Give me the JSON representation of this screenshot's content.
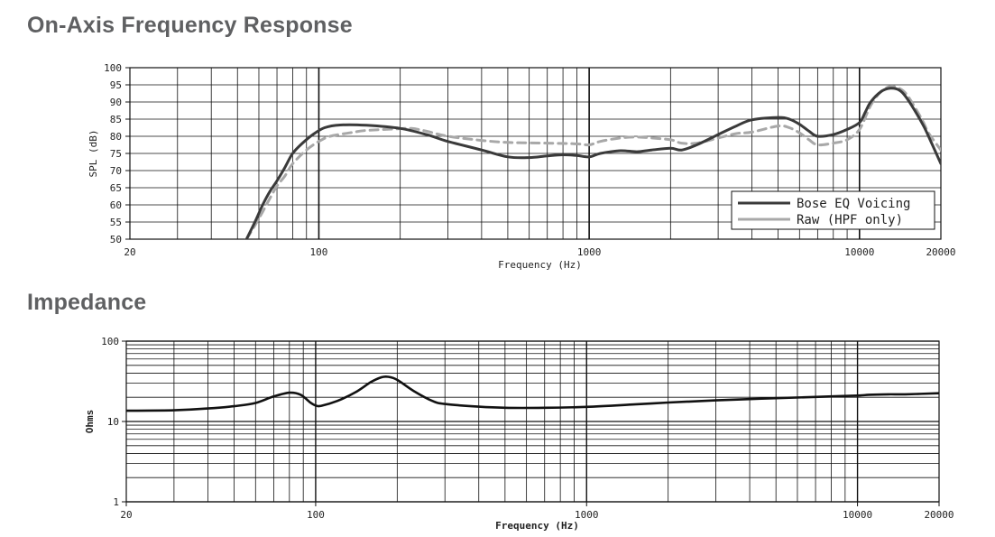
{
  "sections": {
    "frequency_response_title": "On-Axis Frequency Response",
    "impedance_title": "Impedance"
  },
  "colors": {
    "series_primary": "#3a3a3a",
    "series_secondary": "#a8a8a8",
    "impedance_line": "#111111",
    "grid": "#111111",
    "title": "#5f6062"
  },
  "chart_data": [
    {
      "type": "line",
      "title": "On-Axis Frequency Response",
      "xlabel": "Frequency (Hz)",
      "ylabel": "SPL (dB)",
      "xscale": "log",
      "xlim": [
        20,
        20000
      ],
      "ylim": [
        50,
        100
      ],
      "x_ticks": [
        20,
        100,
        1000,
        10000,
        20000
      ],
      "x_tick_labels": [
        "20",
        "100",
        "1000",
        "10000",
        "20000"
      ],
      "y_ticks": [
        50,
        55,
        60,
        65,
        70,
        75,
        80,
        85,
        90,
        95,
        100
      ],
      "grid": true,
      "legend_position": "bottom-right",
      "series": [
        {
          "name": "Bose EQ Voicing",
          "style": "solid",
          "points": [
            [
              54,
              50
            ],
            [
              58,
              55
            ],
            [
              62,
              60
            ],
            [
              66,
              64
            ],
            [
              70,
              67
            ],
            [
              75,
              71
            ],
            [
              80,
              75
            ],
            [
              87,
              78
            ],
            [
              95,
              80.5
            ],
            [
              105,
              82.5
            ],
            [
              120,
              83.3
            ],
            [
              150,
              83.2
            ],
            [
              200,
              82.3
            ],
            [
              250,
              80.5
            ],
            [
              300,
              78.5
            ],
            [
              400,
              76
            ],
            [
              500,
              74
            ],
            [
              600,
              73.8
            ],
            [
              700,
              74.3
            ],
            [
              800,
              74.6
            ],
            [
              900,
              74.4
            ],
            [
              1000,
              74
            ],
            [
              1100,
              75
            ],
            [
              1300,
              75.8
            ],
            [
              1500,
              75.5
            ],
            [
              1700,
              76
            ],
            [
              2000,
              76.5
            ],
            [
              2200,
              76
            ],
            [
              2500,
              77.5
            ],
            [
              3000,
              80.5
            ],
            [
              3500,
              83
            ],
            [
              4000,
              84.8
            ],
            [
              5000,
              85.5
            ],
            [
              5500,
              85
            ],
            [
              6000,
              83.5
            ],
            [
              6500,
              81.5
            ],
            [
              7000,
              80
            ],
            [
              8000,
              80.5
            ],
            [
              9000,
              82
            ],
            [
              10000,
              84
            ],
            [
              10500,
              87
            ],
            [
              11000,
              90
            ],
            [
              12000,
              93
            ],
            [
              13000,
              94
            ],
            [
              14000,
              93.5
            ],
            [
              15000,
              91
            ],
            [
              17000,
              84
            ],
            [
              18000,
              80
            ],
            [
              20000,
              72
            ]
          ]
        },
        {
          "name": "Raw (HPF only)",
          "style": "dashed",
          "points": [
            [
              54,
              50
            ],
            [
              58,
              54
            ],
            [
              62,
              58
            ],
            [
              66,
              62
            ],
            [
              70,
              65.5
            ],
            [
              75,
              68.5
            ],
            [
              80,
              72
            ],
            [
              90,
              76
            ],
            [
              100,
              78.5
            ],
            [
              110,
              80
            ],
            [
              130,
              81
            ],
            [
              150,
              81.7
            ],
            [
              200,
              82.2
            ],
            [
              220,
              82.3
            ],
            [
              250,
              81.5
            ],
            [
              300,
              80
            ],
            [
              400,
              78.8
            ],
            [
              500,
              78.2
            ],
            [
              700,
              78
            ],
            [
              900,
              77.8
            ],
            [
              1000,
              77.5
            ],
            [
              1100,
              78.5
            ],
            [
              1300,
              79.5
            ],
            [
              1500,
              79.8
            ],
            [
              1700,
              79.5
            ],
            [
              2000,
              79
            ],
            [
              2200,
              78
            ],
            [
              2500,
              78
            ],
            [
              3000,
              79.5
            ],
            [
              3500,
              80.8
            ],
            [
              4000,
              81.2
            ],
            [
              5000,
              83
            ],
            [
              5500,
              82.5
            ],
            [
              6000,
              81
            ],
            [
              6500,
              79
            ],
            [
              7000,
              77.5
            ],
            [
              8000,
              78
            ],
            [
              9000,
              79
            ],
            [
              10000,
              82
            ],
            [
              11000,
              89
            ],
            [
              12000,
              93
            ],
            [
              13000,
              94.5
            ],
            [
              14000,
              94
            ],
            [
              15000,
              92
            ],
            [
              17000,
              85
            ],
            [
              18000,
              81
            ],
            [
              20000,
              76
            ]
          ]
        }
      ]
    },
    {
      "type": "line",
      "title": "Impedance",
      "xlabel": "Frequency (Hz)",
      "ylabel": "Ohms",
      "xscale": "log",
      "yscale": "log",
      "xlim": [
        20,
        20000
      ],
      "ylim": [
        1,
        100
      ],
      "x_ticks": [
        20,
        100,
        1000,
        10000,
        20000
      ],
      "x_tick_labels": [
        "20",
        "100",
        "1000",
        "10000",
        "20000"
      ],
      "y_ticks": [
        1,
        10,
        100
      ],
      "y_tick_labels": [
        "1",
        "10",
        "100"
      ],
      "grid": true,
      "series": [
        {
          "name": "",
          "style": "solid",
          "points": [
            [
              20,
              13.6
            ],
            [
              30,
              13.8
            ],
            [
              40,
              14.5
            ],
            [
              50,
              15.5
            ],
            [
              60,
              17
            ],
            [
              70,
              20.5
            ],
            [
              80,
              22.8
            ],
            [
              88,
              21.5
            ],
            [
              95,
              17.5
            ],
            [
              100,
              15.8
            ],
            [
              105,
              15.7
            ],
            [
              120,
              18
            ],
            [
              140,
              23
            ],
            [
              160,
              31
            ],
            [
              175,
              35.5
            ],
            [
              185,
              36
            ],
            [
              200,
              33
            ],
            [
              230,
              24
            ],
            [
              270,
              18
            ],
            [
              300,
              16.5
            ],
            [
              400,
              15.3
            ],
            [
              500,
              14.8
            ],
            [
              700,
              14.8
            ],
            [
              1000,
              15.2
            ],
            [
              1500,
              16.3
            ],
            [
              2000,
              17.2
            ],
            [
              3000,
              18.3
            ],
            [
              4000,
              19
            ],
            [
              5000,
              19.5
            ],
            [
              7000,
              20.2
            ],
            [
              10000,
              21
            ],
            [
              11000,
              21.5
            ],
            [
              13000,
              21.8
            ],
            [
              15000,
              21.8
            ],
            [
              20000,
              22.5
            ]
          ]
        }
      ]
    }
  ]
}
